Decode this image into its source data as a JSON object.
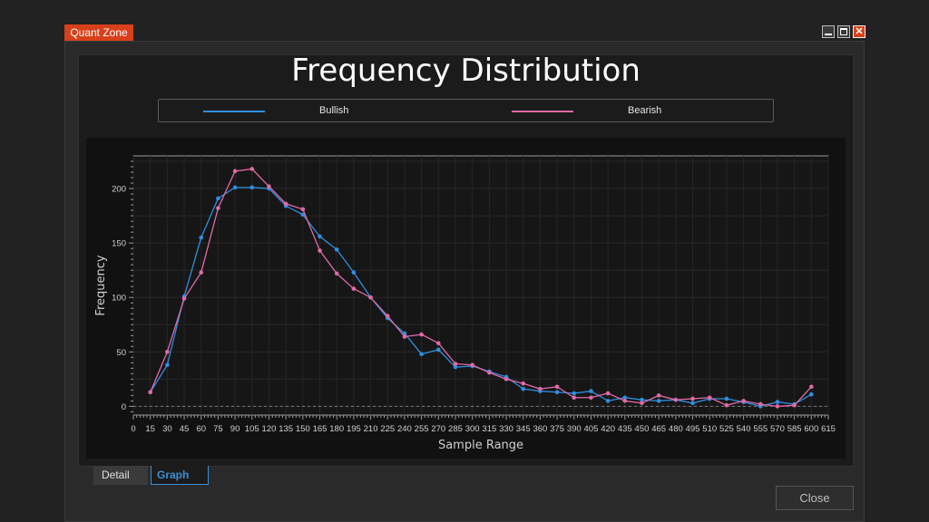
{
  "window": {
    "title": "Quant Zone",
    "close_glyph": "✕"
  },
  "tabs": [
    {
      "label": "Detail",
      "active": false
    },
    {
      "label": "Graph",
      "active": true
    }
  ],
  "footer": {
    "close_label": "Close"
  },
  "colors": {
    "bullish": "#2f8fe0",
    "bearish": "#e06aa6",
    "accent": "#d8401a"
  },
  "chart_data": {
    "type": "line",
    "title": "Frequency Distribution",
    "xlabel": "Sample Range",
    "ylabel": "Frequency",
    "xlim": [
      0,
      615
    ],
    "ylim": [
      -8,
      230
    ],
    "x_ticks": [
      0,
      15,
      30,
      45,
      60,
      75,
      90,
      105,
      120,
      135,
      150,
      165,
      180,
      195,
      210,
      225,
      240,
      255,
      270,
      285,
      300,
      315,
      330,
      345,
      360,
      375,
      390,
      405,
      420,
      435,
      450,
      465,
      480,
      495,
      510,
      525,
      540,
      555,
      570,
      585,
      600,
      615
    ],
    "y_ticks": [
      0,
      50,
      100,
      150,
      200
    ],
    "legend_position": "top",
    "grid": true,
    "x": [
      15,
      30,
      45,
      60,
      75,
      90,
      105,
      120,
      135,
      150,
      165,
      180,
      195,
      210,
      225,
      240,
      255,
      270,
      285,
      300,
      315,
      330,
      345,
      360,
      375,
      390,
      405,
      420,
      435,
      450,
      465,
      480,
      495,
      510,
      525,
      540,
      555,
      570,
      585,
      600
    ],
    "series": [
      {
        "name": "Bullish",
        "color": "#2f8fe0",
        "values": [
          13,
          38,
          101,
          155,
          191,
          201,
          201,
          200,
          184,
          176,
          156,
          144,
          123,
          100,
          81,
          67,
          48,
          52,
          36,
          37,
          32,
          27,
          16,
          14,
          13,
          12,
          14,
          5,
          8,
          6,
          5,
          6,
          3,
          7,
          7,
          4,
          0,
          4,
          2,
          11
        ]
      },
      {
        "name": "Bearish",
        "color": "#e06aa6",
        "values": [
          13,
          50,
          99,
          123,
          182,
          216,
          218,
          202,
          186,
          181,
          143,
          122,
          108,
          100,
          83,
          64,
          66,
          58,
          39,
          38,
          31,
          25,
          21,
          16,
          18,
          8,
          8,
          12,
          5,
          3,
          10,
          6,
          7,
          8,
          1,
          5,
          2,
          0,
          1,
          18
        ]
      }
    ]
  }
}
